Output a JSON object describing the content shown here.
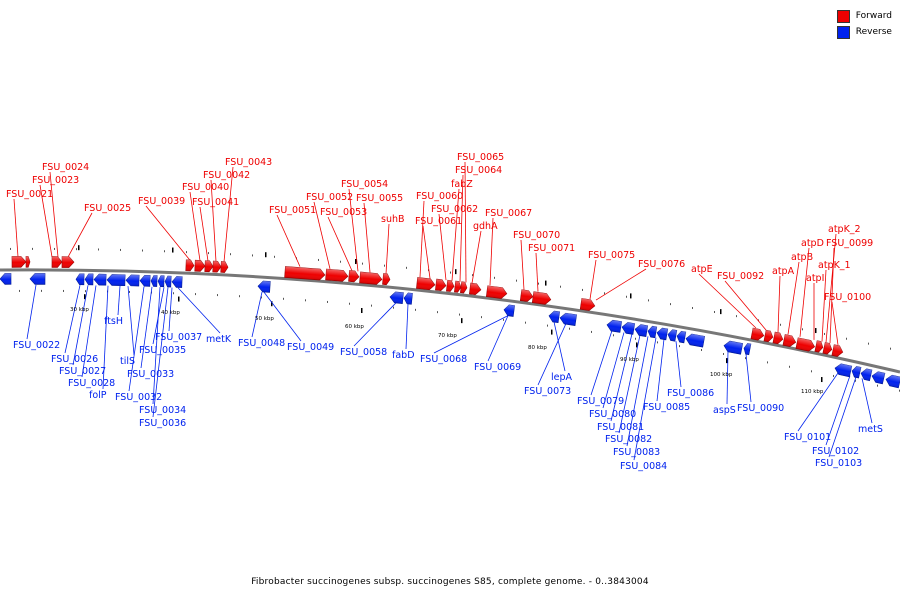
{
  "legend": {
    "forward_label": "Forward",
    "reverse_label": "Reverse",
    "forward_color": "#ee0000",
    "reverse_color": "#0022ee"
  },
  "caption": "Fibrobacter succinogenes subsp. succinogenes S85, complete genome. - 0..3843004",
  "scale_labels": [
    "30 kbp",
    "40 kbp",
    "50 kbp",
    "60 kbp",
    "70 kbp",
    "80 kbp",
    "90 kbp",
    "100 kbp",
    "110 kbp"
  ],
  "forward_labels": [
    "FSU_0021",
    "FSU_0023",
    "FSU_0024",
    "FSU_0025",
    "FSU_0039",
    "FSU_0040",
    "FSU_0041",
    "FSU_0042",
    "FSU_0043",
    "FSU_0051",
    "FSU_0052",
    "FSU_0053",
    "FSU_0054",
    "FSU_0055",
    "suhB",
    "FSU_0060",
    "FSU_0061",
    "FSU_0062",
    "fabZ",
    "FSU_0064",
    "FSU_0065",
    "gdhA",
    "FSU_0067",
    "FSU_0070",
    "FSU_0071",
    "FSU_0075",
    "FSU_0076",
    "atpE",
    "FSU_0092",
    "atpA",
    "atpB",
    "atpD",
    "atpI",
    "atpK_1",
    "atpK_2",
    "FSU_0099",
    "FSU_0100"
  ],
  "reverse_labels": [
    "FSU_0022",
    "FSU_0026",
    "FSU_0027",
    "FSU_0028",
    "folP",
    "ftsH",
    "tilS",
    "FSU_0032",
    "FSU_0033",
    "FSU_0034",
    "FSU_0035",
    "FSU_0036",
    "FSU_0037",
    "metK",
    "FSU_0048",
    "FSU_0049",
    "FSU_0058",
    "fabD",
    "FSU_0068",
    "FSU_0069",
    "lepA",
    "FSU_0073",
    "FSU_0079",
    "FSU_0080",
    "FSU_0081",
    "FSU_0082",
    "FSU_0083",
    "FSU_0084",
    "FSU_0085",
    "FSU_0086",
    "aspS",
    "FSU_0090",
    "FSU_0101",
    "FSU_0102",
    "FSU_0103",
    "metS"
  ]
}
